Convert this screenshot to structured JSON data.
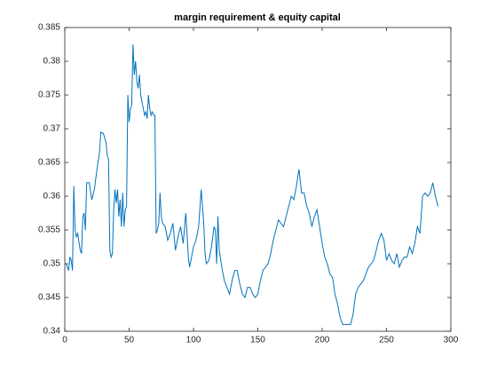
{
  "chart_data": {
    "type": "line",
    "title": "margin requirement & equity capital",
    "x": [
      1,
      2,
      3,
      4,
      5,
      6,
      7,
      8,
      9,
      10,
      12,
      13,
      14,
      15,
      16,
      17,
      19,
      21,
      23,
      25,
      27,
      28,
      30,
      32,
      33,
      34,
      35,
      36,
      37,
      38,
      39,
      40,
      41,
      42,
      43,
      44,
      45,
      46,
      47,
      48,
      49,
      50,
      51,
      52,
      53,
      54,
      55,
      56,
      57,
      58,
      59,
      60,
      61,
      62,
      63,
      64,
      65,
      66,
      67,
      68,
      69,
      70,
      71,
      72,
      73,
      74,
      75,
      76,
      78,
      80,
      82,
      84,
      86,
      88,
      90,
      92,
      94,
      95,
      96,
      97,
      98,
      100,
      102,
      104,
      106,
      107,
      108,
      109,
      110,
      112,
      114,
      116,
      117,
      118,
      119,
      120,
      122,
      124,
      126,
      128,
      130,
      132,
      134,
      136,
      138,
      140,
      142,
      144,
      146,
      148,
      150,
      152,
      154,
      156,
      158,
      160,
      162,
      164,
      166,
      168,
      170,
      172,
      174,
      176,
      178,
      180,
      182,
      184,
      186,
      188,
      190,
      192,
      194,
      196,
      198,
      200,
      202,
      204,
      206,
      208,
      210,
      212,
      214,
      216,
      218,
      220,
      222,
      224,
      226,
      228,
      230,
      232,
      234,
      236,
      238,
      240,
      242,
      244,
      246,
      248,
      250,
      252,
      254,
      256,
      258,
      260,
      262,
      264,
      266,
      268,
      270,
      272,
      274,
      276,
      278,
      280,
      282,
      284,
      286,
      288,
      290
    ],
    "series": [
      {
        "name": "margin requirement & equity capital",
        "color": "#0072bd",
        "values": [
          0.35,
          0.3495,
          0.349,
          0.351,
          0.3505,
          0.349,
          0.3615,
          0.355,
          0.354,
          0.3545,
          0.352,
          0.3515,
          0.357,
          0.3575,
          0.355,
          0.362,
          0.362,
          0.3595,
          0.361,
          0.364,
          0.3665,
          0.3695,
          0.3693,
          0.368,
          0.366,
          0.3655,
          0.352,
          0.351,
          0.3515,
          0.358,
          0.361,
          0.359,
          0.361,
          0.357,
          0.3595,
          0.3555,
          0.3605,
          0.3555,
          0.358,
          0.3585,
          0.375,
          0.371,
          0.373,
          0.3735,
          0.3825,
          0.378,
          0.38,
          0.377,
          0.376,
          0.378,
          0.375,
          0.374,
          0.373,
          0.372,
          0.3725,
          0.3715,
          0.375,
          0.373,
          0.372,
          0.3725,
          0.372,
          0.372,
          0.3545,
          0.355,
          0.356,
          0.3605,
          0.357,
          0.356,
          0.3555,
          0.3535,
          0.3545,
          0.356,
          0.352,
          0.354,
          0.3555,
          0.353,
          0.3575,
          0.3545,
          0.351,
          0.3495,
          0.3505,
          0.3525,
          0.3535,
          0.3555,
          0.361,
          0.3585,
          0.356,
          0.3515,
          0.35,
          0.3505,
          0.3525,
          0.3555,
          0.355,
          0.35,
          0.357,
          0.352,
          0.3495,
          0.3475,
          0.3465,
          0.3455,
          0.3475,
          0.349,
          0.349,
          0.347,
          0.3455,
          0.345,
          0.3465,
          0.3465,
          0.3455,
          0.345,
          0.3455,
          0.3475,
          0.349,
          0.3495,
          0.35,
          0.3515,
          0.3535,
          0.355,
          0.3565,
          0.356,
          0.3555,
          0.357,
          0.3585,
          0.36,
          0.3595,
          0.3615,
          0.364,
          0.3605,
          0.3605,
          0.3585,
          0.3575,
          0.3555,
          0.357,
          0.358,
          0.3555,
          0.353,
          0.351,
          0.35,
          0.3485,
          0.348,
          0.3455,
          0.344,
          0.342,
          0.341,
          0.341,
          0.341,
          0.341,
          0.3425,
          0.3455,
          0.3465,
          0.347,
          0.3475,
          0.3485,
          0.3495,
          0.35,
          0.3505,
          0.352,
          0.3535,
          0.3545,
          0.3535,
          0.3505,
          0.3515,
          0.3505,
          0.35,
          0.3515,
          0.3495,
          0.3505,
          0.351,
          0.351,
          0.3525,
          0.3515,
          0.353,
          0.3555,
          0.3545,
          0.36,
          0.3605,
          0.36,
          0.3605,
          0.362,
          0.36,
          0.3585
        ]
      }
    ],
    "xlim": [
      0,
      300
    ],
    "xticks": [
      0,
      50,
      100,
      150,
      200,
      250,
      300
    ],
    "ylim": [
      0.34,
      0.385
    ],
    "yticks": [
      0.34,
      0.345,
      0.35,
      0.355,
      0.36,
      0.365,
      0.37,
      0.375,
      0.38,
      0.385
    ],
    "grid": false
  }
}
